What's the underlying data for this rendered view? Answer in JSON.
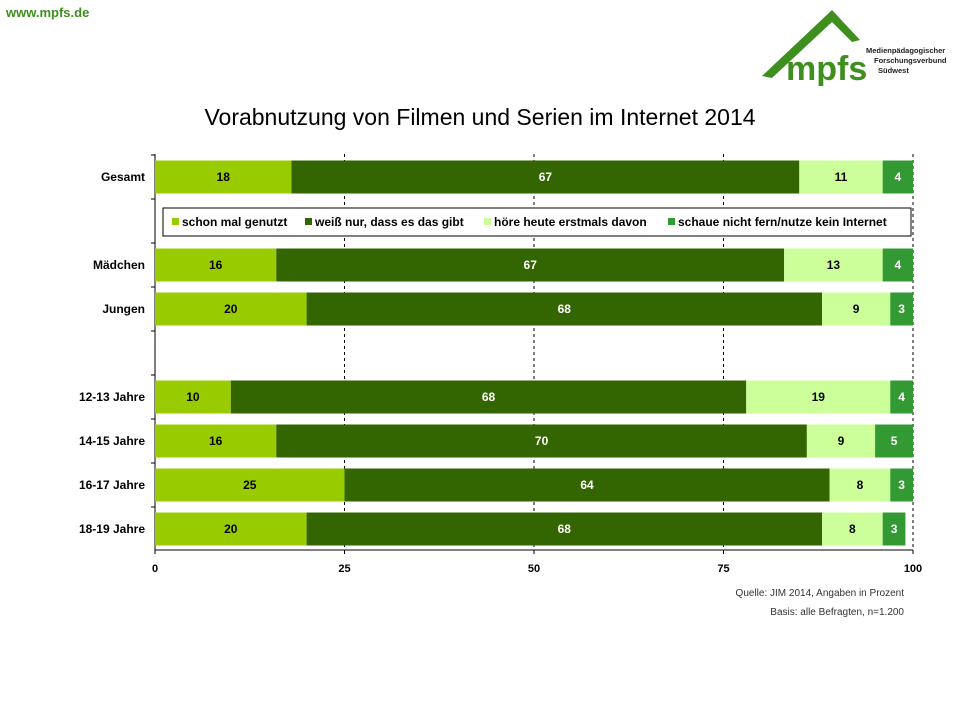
{
  "header": {
    "site_url": "www.mpfs.de",
    "logo_text": "mpfs",
    "logo_tag_line1": "Medienpädagogischer",
    "logo_tag_line2": "Forschungsverbund",
    "logo_tag_line3": "Südwest"
  },
  "colors": {
    "light_green": "#99cc00",
    "dark_green": "#336600",
    "pale_green": "#ccff99",
    "mid_green": "#339933",
    "brand": "#3f8f1f"
  },
  "footer": {
    "source": "Quelle: JIM 2014, Angaben in Prozent",
    "basis": "Basis: alle Befragten, n=1.200"
  },
  "chart_data": {
    "type": "bar",
    "orientation": "horizontal",
    "stacked": true,
    "title": "Vorabnutzung von Filmen und Serien im Internet 2014",
    "categories": [
      "Gesamt",
      "",
      "Mädchen",
      "Jungen",
      "",
      "12-13 Jahre",
      "14-15 Jahre",
      "16-17 Jahre",
      "18-19 Jahre"
    ],
    "series": [
      {
        "name": "schon mal genutzt",
        "color": "#99cc00",
        "label_color": "#000000",
        "values": [
          18,
          null,
          16,
          20,
          null,
          10,
          16,
          25,
          20
        ]
      },
      {
        "name": "weiß nur, dass es das gibt",
        "color": "#336600",
        "label_color": "#ffffff",
        "values": [
          67,
          null,
          67,
          68,
          null,
          68,
          70,
          64,
          68
        ]
      },
      {
        "name": "höre heute erstmals davon",
        "color": "#ccff99",
        "label_color": "#000000",
        "values": [
          11,
          null,
          13,
          9,
          null,
          19,
          9,
          8,
          8
        ]
      },
      {
        "name": "schaue nicht fern/nutze kein Internet",
        "color": "#339933",
        "label_color": "#ffffff",
        "values": [
          4,
          null,
          4,
          3,
          null,
          4,
          5,
          3,
          3
        ]
      }
    ],
    "xlim": [
      0,
      100
    ],
    "xticks": [
      0,
      25,
      50,
      75,
      100
    ],
    "grid": "dashed vertical",
    "legend": "inside, below first bar"
  }
}
